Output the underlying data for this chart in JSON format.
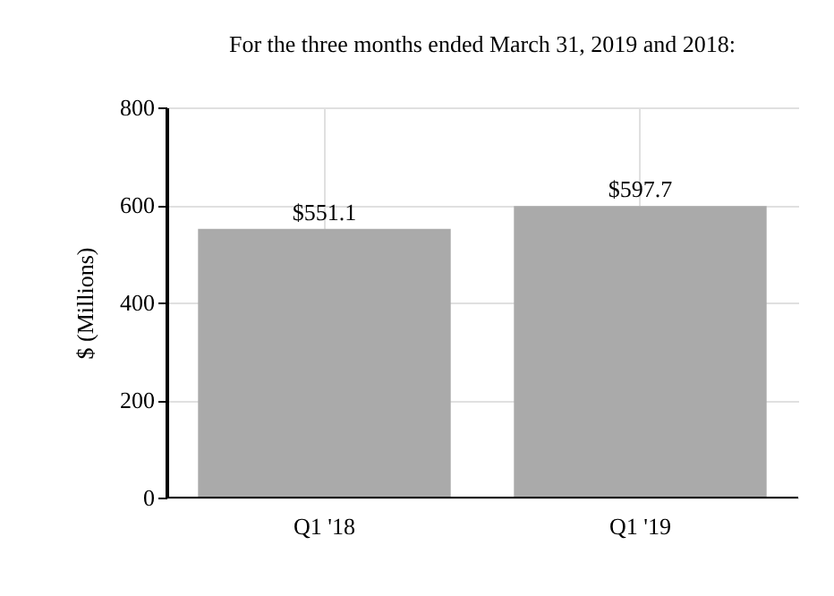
{
  "chart_data": {
    "type": "bar",
    "title": "For the three months ended March 31, 2019 and 2018:",
    "ylabel": "$ (Millions)",
    "categories": [
      "Q1 '18",
      "Q1 '19"
    ],
    "values": [
      551.1,
      597.7
    ],
    "value_labels": [
      "$551.1",
      "$597.7"
    ],
    "color": "#aaaaaa",
    "ylim": [
      0,
      800
    ],
    "yticks": [
      0,
      200,
      400,
      600,
      800
    ],
    "grid": true
  }
}
